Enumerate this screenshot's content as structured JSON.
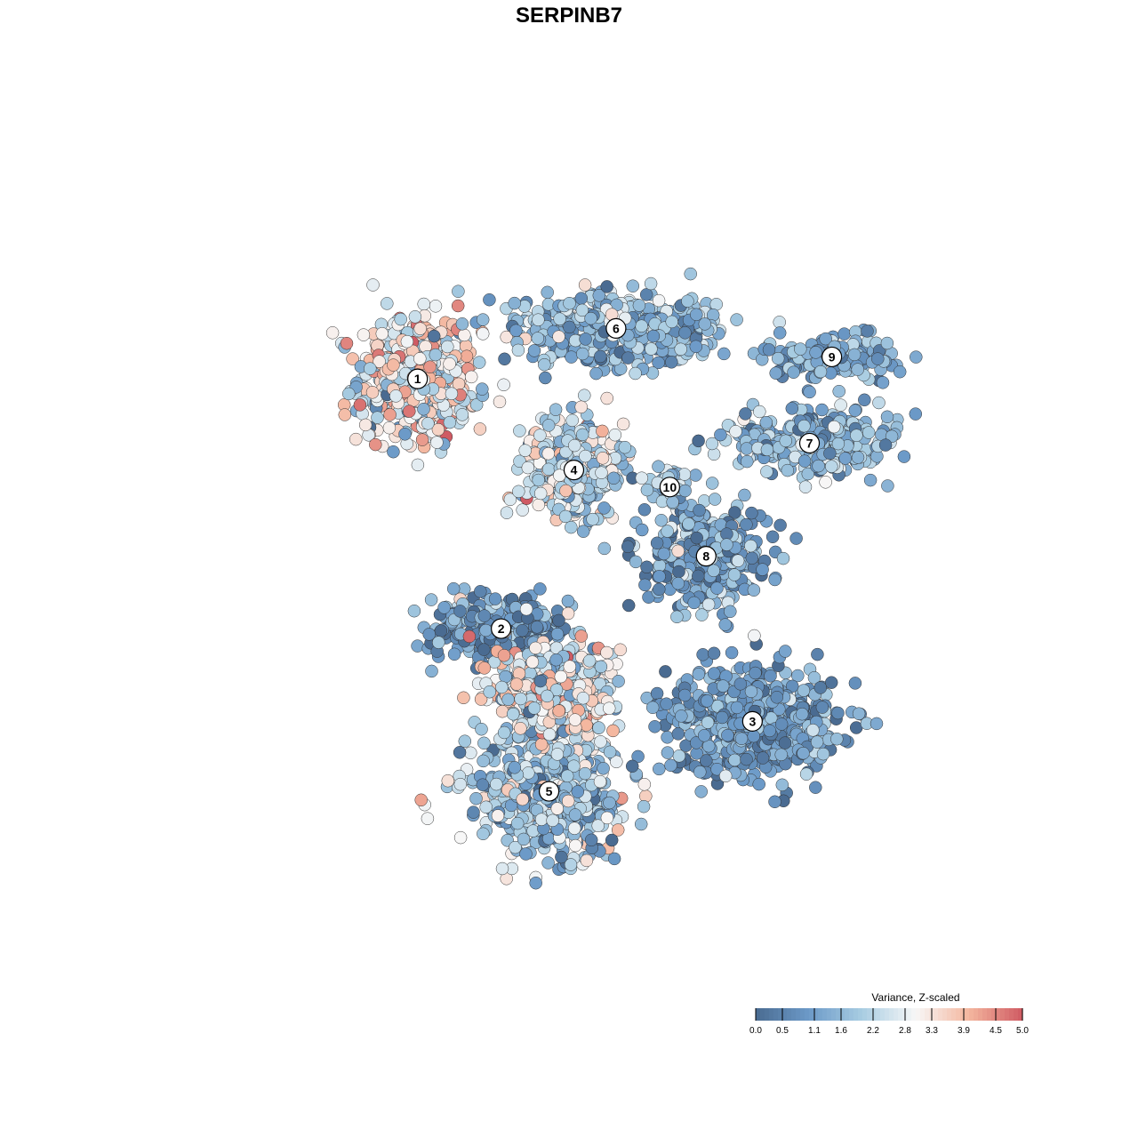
{
  "chart_data": {
    "type": "scatter",
    "title": "SERPINB7",
    "xlabel": "",
    "ylabel": "",
    "xlim": [
      0,
      1000
    ],
    "ylim": [
      0,
      1000
    ],
    "grid": false,
    "legend": {
      "title": "Variance, Z-scaled",
      "placement": "bottom-right",
      "range": [
        0.0,
        5.0
      ],
      "ticks": [
        "0.0",
        "0.5",
        "1.1",
        "1.6",
        "2.2",
        "2.8",
        "3.3",
        "3.9",
        "4.5",
        "5.0"
      ],
      "colors": [
        "#4a6b91",
        "#6c9ac8",
        "#a9cde2",
        "#f7f7f7",
        "#f4b69e",
        "#cf5a63"
      ]
    },
    "clusters": [
      {
        "label": "1",
        "x": 290,
        "y": 731,
        "spread": [
          65,
          70
        ],
        "n": 520,
        "mean": 2.9,
        "sd": 0.9
      },
      {
        "label": "2",
        "x": 391,
        "y": 424,
        "spread": [
          75,
          40
        ],
        "n": 340,
        "mean": 1.1,
        "sd": 0.7
      },
      {
        "label": "3",
        "x": 695,
        "y": 310,
        "spread": [
          95,
          60
        ],
        "n": 560,
        "mean": 1.0,
        "sd": 0.6
      },
      {
        "label": "4",
        "x": 479,
        "y": 619,
        "spread": [
          55,
          55
        ],
        "n": 380,
        "mean": 2.3,
        "sd": 0.8
      },
      {
        "label": "5",
        "x": 449,
        "y": 224,
        "spread": [
          80,
          65
        ],
        "n": 600,
        "mean": 1.8,
        "sd": 0.9
      },
      {
        "label": "6",
        "x": 530,
        "y": 793,
        "spread": [
          110,
          40
        ],
        "n": 480,
        "mean": 1.6,
        "sd": 0.7
      },
      {
        "label": "7",
        "x": 764,
        "y": 652,
        "spread": [
          90,
          35
        ],
        "n": 330,
        "mean": 1.6,
        "sd": 0.7
      },
      {
        "label": "8",
        "x": 639,
        "y": 513,
        "spread": [
          70,
          55
        ],
        "n": 300,
        "mean": 1.2,
        "sd": 0.8
      },
      {
        "label": "9",
        "x": 791,
        "y": 758,
        "spread": [
          70,
          25
        ],
        "n": 150,
        "mean": 1.2,
        "sd": 0.6
      },
      {
        "label": "10",
        "x": 595,
        "y": 598,
        "spread": [
          18,
          22
        ],
        "n": 50,
        "mean": 1.9,
        "sd": 0.5
      },
      {
        "label": "",
        "x": 452,
        "y": 350,
        "spread": [
          70,
          50
        ],
        "n": 380,
        "mean": 2.7,
        "sd": 1.0
      }
    ]
  }
}
